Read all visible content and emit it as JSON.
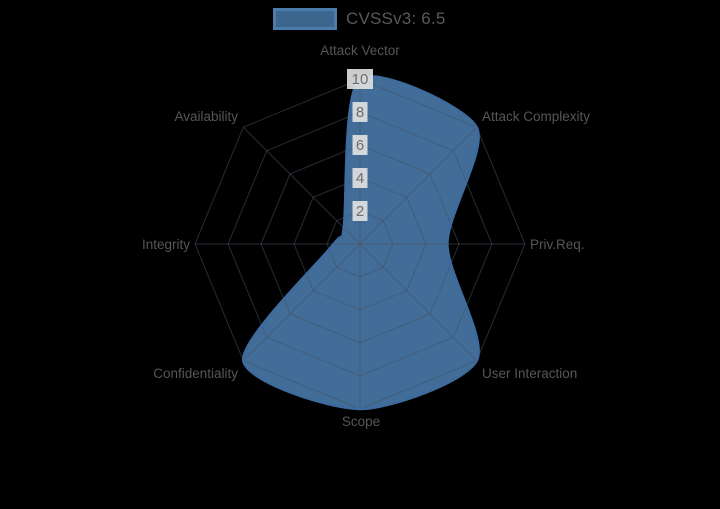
{
  "chart": {
    "legend": {
      "label": "CVSSv3: 6.5"
    }
  },
  "chart_data": {
    "type": "radar",
    "title": "CVSSv3: 6.5",
    "legend_position": "top",
    "legend_entries": [
      "CVSSv3: 6.5"
    ],
    "axes": [
      "Attack Vector",
      "Attack Complexity",
      "Priv.Req.",
      "User Interaction",
      "Scope",
      "Confidentiality",
      "Integrity",
      "Availability"
    ],
    "series": [
      {
        "name": "CVSSv3: 6.5",
        "values": [
          10,
          10,
          5.3,
          10,
          10,
          10,
          1.6,
          1.4
        ]
      }
    ],
    "r_range": [
      0,
      10
    ],
    "ticks": [
      2,
      4,
      6,
      8,
      10
    ],
    "grid": true,
    "grid_shape": "polygon",
    "colors": {
      "fill": "#4B7CAD",
      "fill_opacity": 0.88,
      "border": "#3E6B9E",
      "grid_line": "#46505E",
      "tick_text": "#6E6E6E",
      "tick_backdrop": "#E2E2E2",
      "label_text": "#565656",
      "legend_text": "#595959",
      "background": "#000000"
    }
  }
}
